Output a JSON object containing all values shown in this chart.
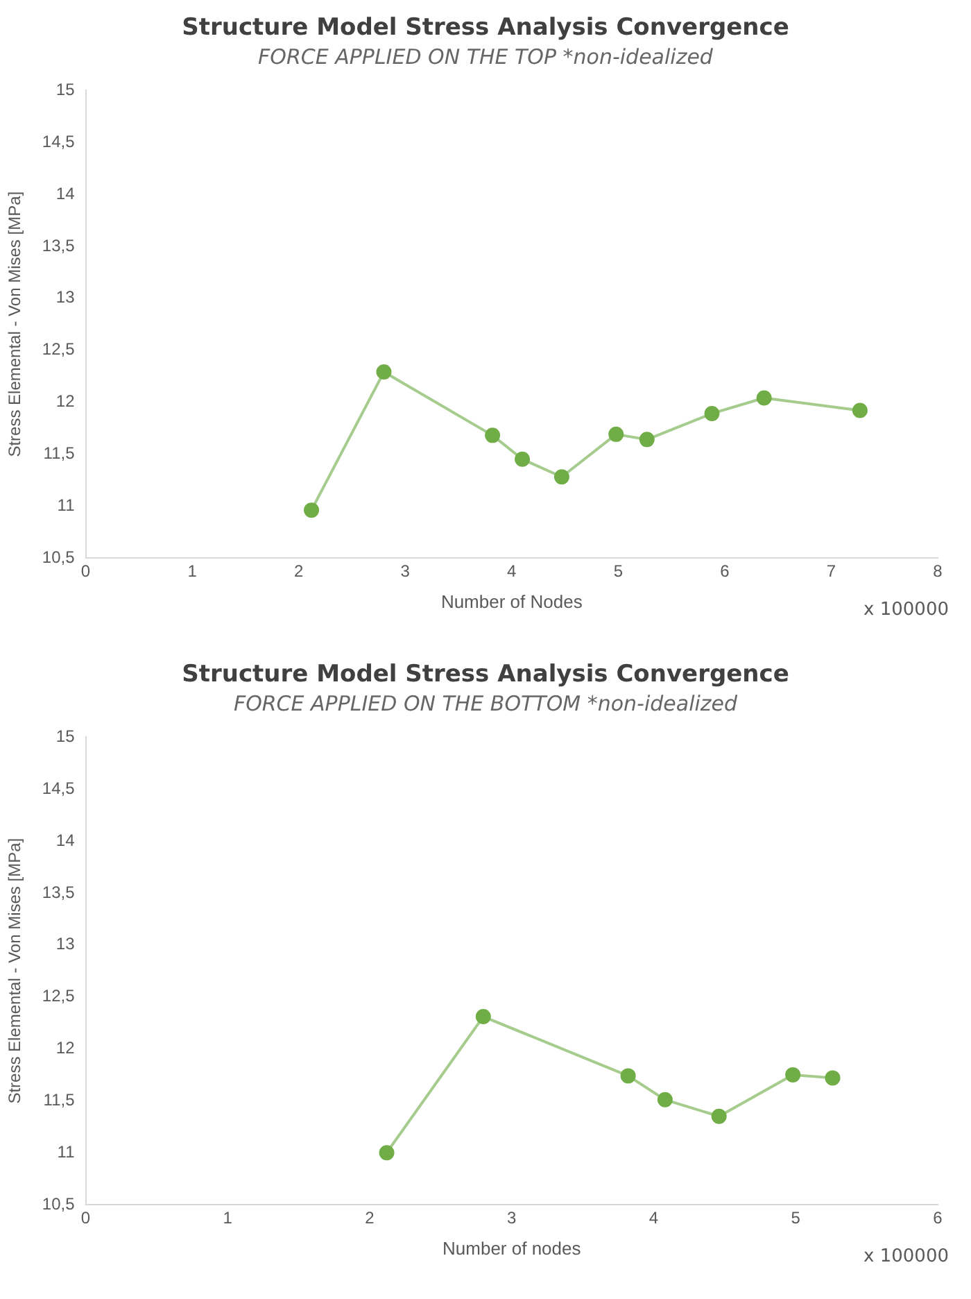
{
  "chart_data": [
    {
      "type": "line",
      "title": "Structure Model Stress Analysis Convergence",
      "subtitle": "FORCE APPLIED ON THE TOP *non-idealized",
      "xlabel": "Number of Nodes",
      "ylabel": "Stress Elemental - Von Mises [MPa]",
      "annotations": [
        "x 100000"
      ],
      "x": [
        2.12,
        2.8,
        3.82,
        4.1,
        4.47,
        4.98,
        5.27,
        5.88,
        6.37,
        7.27
      ],
      "series": [
        {
          "color": "#70ad47",
          "values": [
            10.96,
            12.29,
            11.68,
            11.45,
            11.28,
            11.69,
            11.64,
            11.89,
            12.04,
            11.92
          ]
        }
      ],
      "xlim": [
        0,
        8
      ],
      "xticks": [
        0,
        1,
        2,
        3,
        4,
        5,
        6,
        7,
        8
      ],
      "ylim": [
        10.5,
        15
      ],
      "yticks": [
        {
          "value": 10.5,
          "label": "10,5"
        },
        11,
        {
          "value": 11.5,
          "label": "11,5"
        },
        12,
        {
          "value": 12.5,
          "label": "12,5"
        },
        13,
        {
          "value": 13.5,
          "label": "13,5"
        },
        14,
        {
          "value": 14.5,
          "label": "14,5"
        },
        15
      ],
      "grid": false,
      "legend": false,
      "marker": "circle",
      "line_style": "solid"
    },
    {
      "type": "line",
      "title": "Structure Model Stress Analysis Convergence",
      "subtitle": "FORCE APPLIED ON THE BOTTOM *non-idealized",
      "xlabel": "Number of nodes",
      "ylabel": "Stress Elemental - Von Mises [MPa]",
      "annotations": [
        "x 100000"
      ],
      "x": [
        2.12,
        2.8,
        3.82,
        4.08,
        4.46,
        4.98,
        5.26
      ],
      "series": [
        {
          "color": "#70ad47",
          "values": [
            11.0,
            12.31,
            11.74,
            11.51,
            11.35,
            11.75,
            11.72
          ]
        }
      ],
      "xlim": [
        0,
        6
      ],
      "xticks": [
        0,
        1,
        2,
        3,
        4,
        5,
        6
      ],
      "ylim": [
        10.5,
        15
      ],
      "yticks": [
        {
          "value": 10.5,
          "label": "10,5"
        },
        11,
        {
          "value": 11.5,
          "label": "11,5"
        },
        12,
        {
          "value": 12.5,
          "label": "12,5"
        },
        13,
        {
          "value": 13.5,
          "label": "13,5"
        },
        14,
        {
          "value": 14.5,
          "label": "14,5"
        },
        15
      ],
      "grid": false,
      "legend": false,
      "marker": "circle",
      "line_style": "solid"
    }
  ]
}
